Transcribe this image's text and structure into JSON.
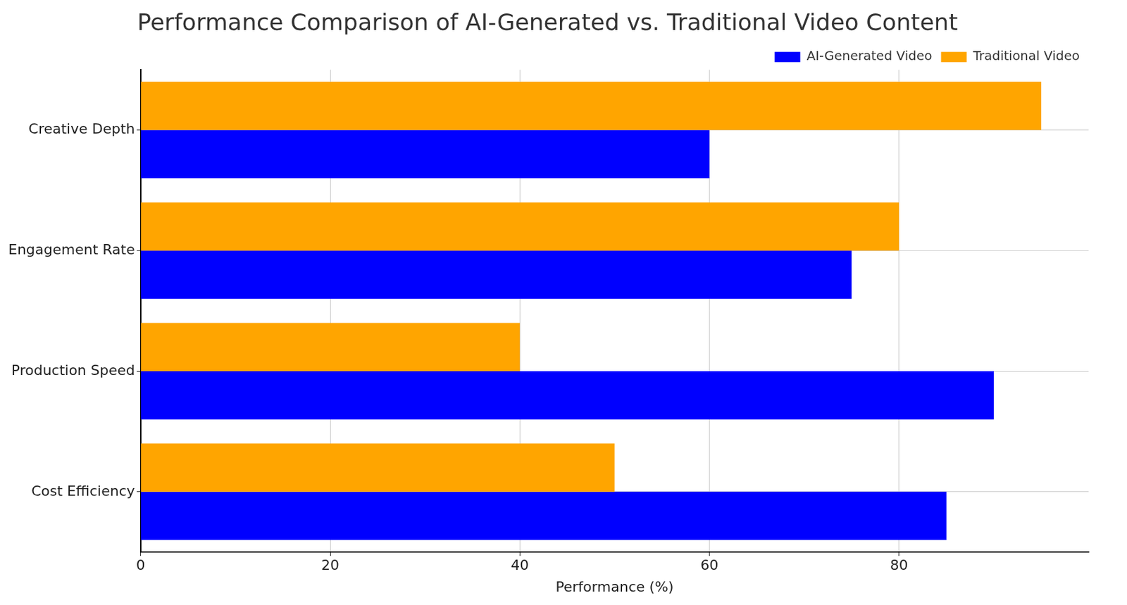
{
  "chart_data": {
    "type": "bar",
    "orientation": "horizontal",
    "title": "Performance Comparison of AI-Generated vs. Traditional Video Content",
    "x_label": "Performance (%)",
    "categories": [
      "Creative Depth",
      "Engagement Rate",
      "Production Speed",
      "Cost Efficiency"
    ],
    "series": [
      {
        "name": "AI-Generated Video",
        "color": "#0000ff",
        "values": [
          60,
          75,
          90,
          85
        ]
      },
      {
        "name": "Traditional Video",
        "color": "#ffa500",
        "values": [
          95,
          80,
          40,
          50
        ]
      }
    ],
    "xlim": [
      0,
      100
    ],
    "xticks": [
      0,
      20,
      40,
      60,
      80
    ],
    "grid": true,
    "legend": "upper right"
  }
}
